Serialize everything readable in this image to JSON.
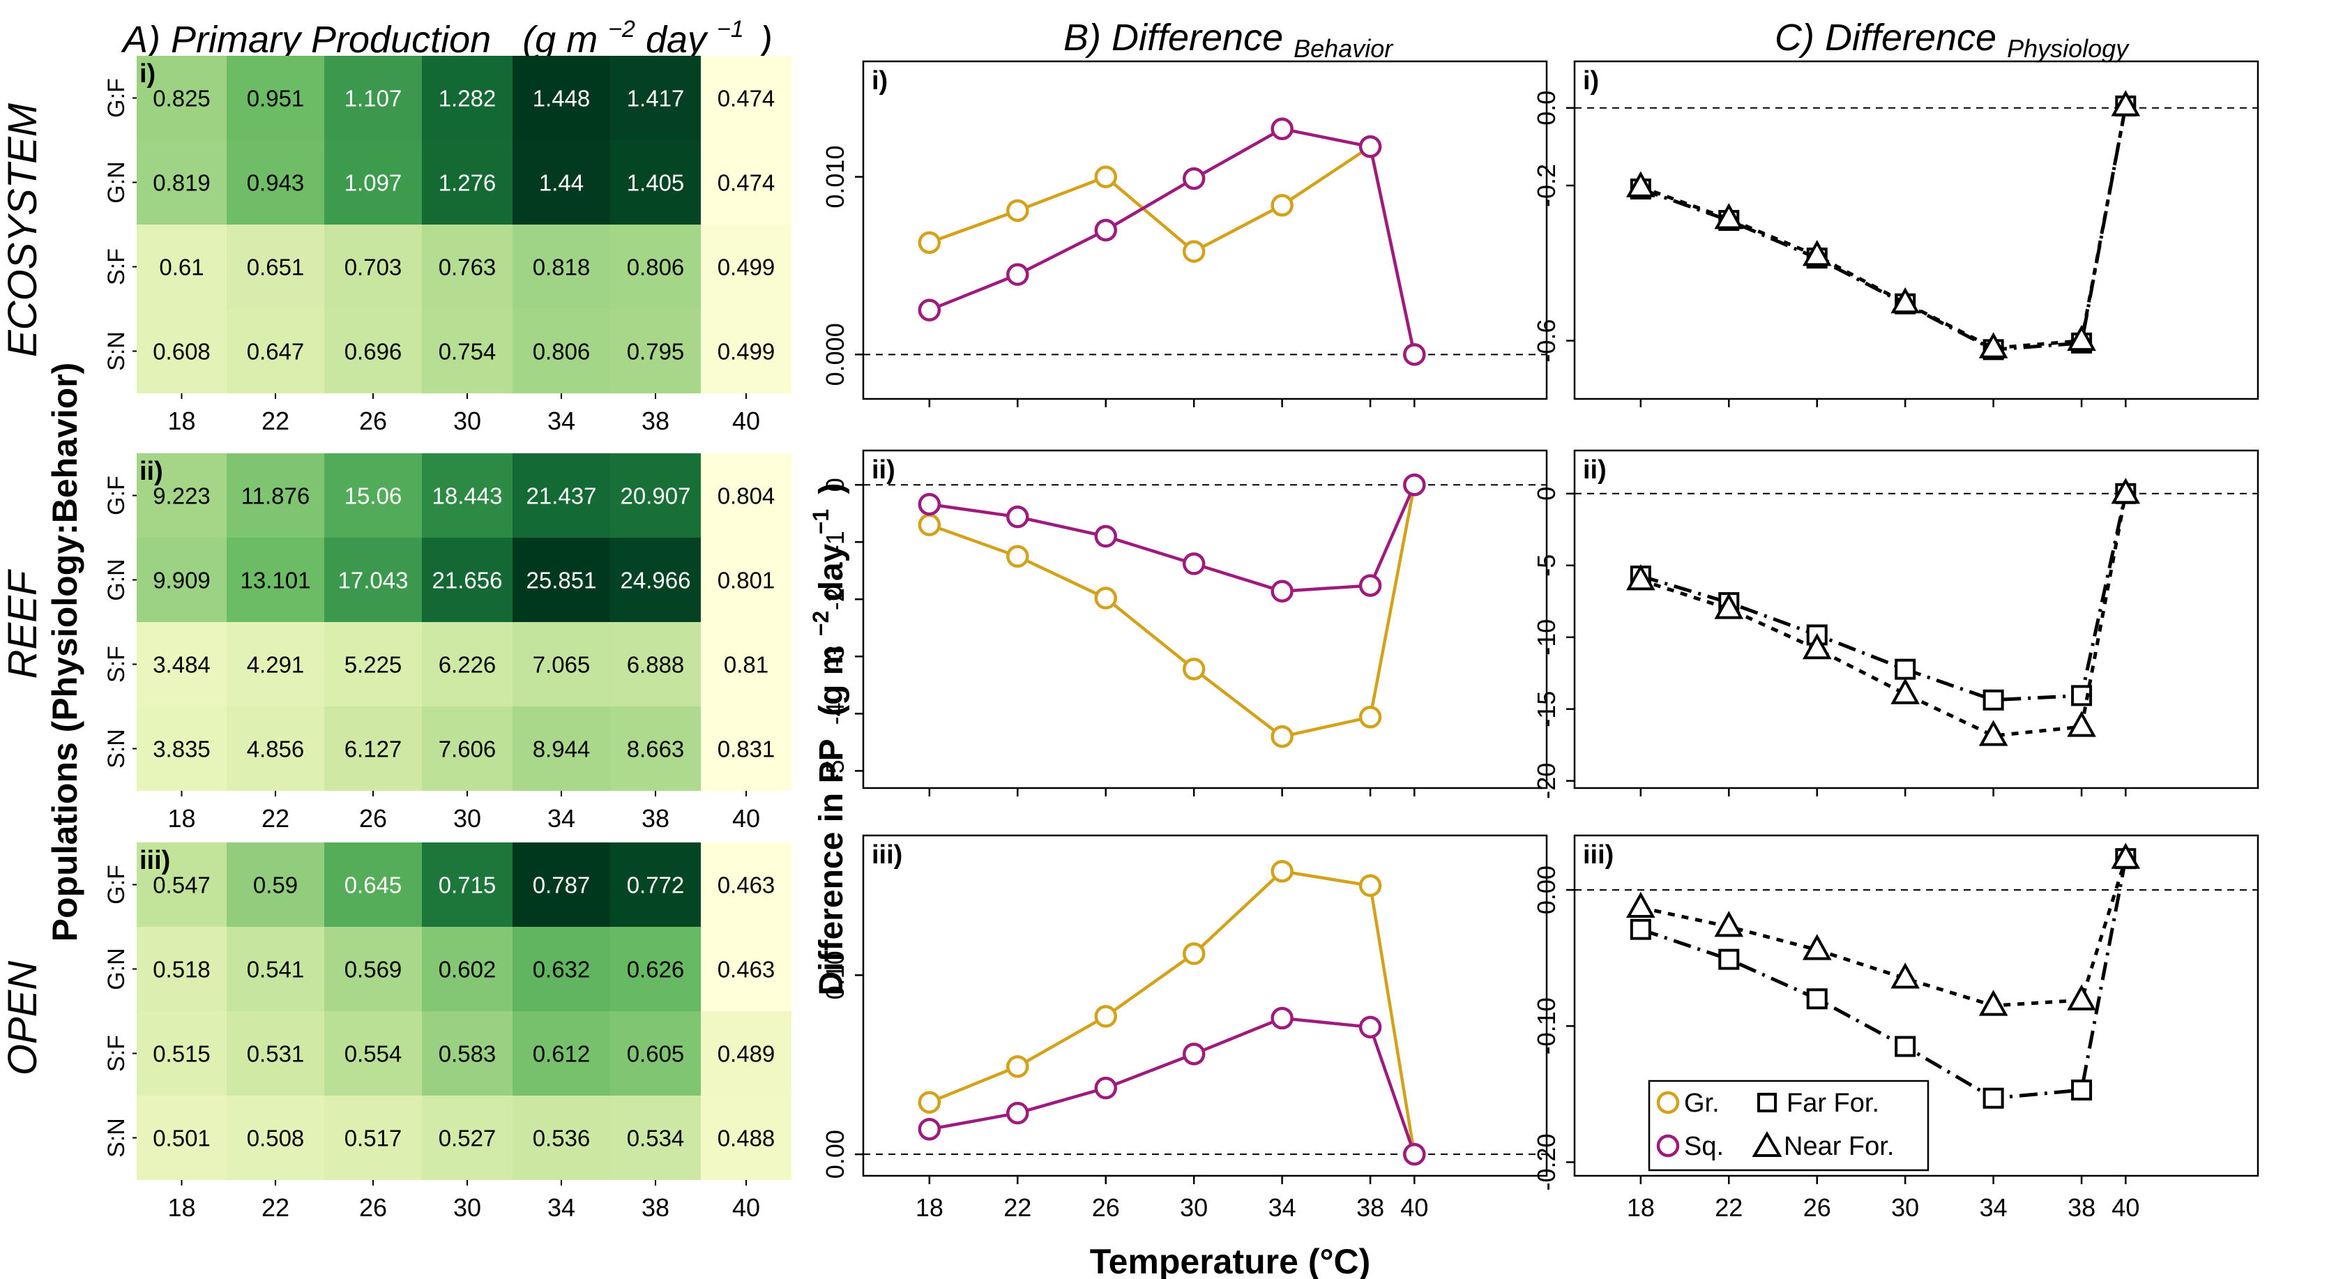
{
  "headers": {
    "a_prefix": "A) Primary Production",
    "a_units": "(g m",
    "a_units_exp": "−2",
    "a_units_day": " day",
    "a_units_exp2": "−1",
    "a_units_close": ")",
    "b_main": "B) Difference",
    "b_sub": "Behavior",
    "c_main": "C) Difference",
    "c_sub": "Physiology"
  },
  "row_labels": {
    "ecosystem": "ECOSYSTEM",
    "reef": "REEF",
    "open": "OPEN",
    "populations": "Populations (Physiology:Behavior)"
  },
  "shared_labels": {
    "ylabel_main": "Difference in PP",
    "ylabel_units": "(g m",
    "ylabel_exp": "−2",
    "ylabel_day": " day",
    "ylabel_exp2": "−1",
    "ylabel_close": ")",
    "xlabel": "Temperature (°C)"
  },
  "legend": {
    "gr": "Gr.",
    "sq": "Sq.",
    "far": "Far For.",
    "near": "Near For."
  },
  "colors": {
    "grazer": "#D4A21A",
    "squirrel": "#9E1A7E",
    "black": "#000000",
    "heat_low": "#FFFFDA",
    "heat_high": "#00381E"
  },
  "chart_data": [
    {
      "id": "A-i",
      "type": "heatmap",
      "panel_label": "i)",
      "rows": [
        "G:F",
        "G:N",
        "S:F",
        "S:N"
      ],
      "columns": [
        "18",
        "22",
        "26",
        "30",
        "34",
        "38",
        "40"
      ],
      "values": [
        [
          "0.825",
          "0.951",
          "1.107",
          "1.282",
          "1.448",
          "1.417",
          "0.474"
        ],
        [
          "0.819",
          "0.943",
          "1.097",
          "1.276",
          "1.44",
          "1.405",
          "0.474"
        ],
        [
          "0.61",
          "0.651",
          "0.703",
          "0.763",
          "0.818",
          "0.806",
          "0.499"
        ],
        [
          "0.608",
          "0.647",
          "0.696",
          "0.754",
          "0.806",
          "0.795",
          "0.499"
        ]
      ],
      "xlabel": "Temperature (°C)"
    },
    {
      "id": "A-ii",
      "type": "heatmap",
      "panel_label": "ii)",
      "rows": [
        "G:F",
        "G:N",
        "S:F",
        "S:N"
      ],
      "columns": [
        "18",
        "22",
        "26",
        "30",
        "34",
        "38",
        "40"
      ],
      "values": [
        [
          "9.223",
          "11.876",
          "15.06",
          "18.443",
          "21.437",
          "20.907",
          "0.804"
        ],
        [
          "9.909",
          "13.101",
          "17.043",
          "21.656",
          "25.851",
          "24.966",
          "0.801"
        ],
        [
          "3.484",
          "4.291",
          "5.225",
          "6.226",
          "7.065",
          "6.888",
          "0.81"
        ],
        [
          "3.835",
          "4.856",
          "6.127",
          "7.606",
          "8.944",
          "8.663",
          "0.831"
        ]
      ],
      "xlabel": "Temperature (°C)"
    },
    {
      "id": "A-iii",
      "type": "heatmap",
      "panel_label": "iii)",
      "rows": [
        "G:F",
        "G:N",
        "S:F",
        "S:N"
      ],
      "columns": [
        "18",
        "22",
        "26",
        "30",
        "34",
        "38",
        "40"
      ],
      "values": [
        [
          "0.547",
          "0.59",
          "0.645",
          "0.715",
          "0.787",
          "0.772",
          "0.463"
        ],
        [
          "0.518",
          "0.541",
          "0.569",
          "0.602",
          "0.632",
          "0.626",
          "0.463"
        ],
        [
          "0.515",
          "0.531",
          "0.554",
          "0.583",
          "0.612",
          "0.605",
          "0.489"
        ],
        [
          "0.501",
          "0.508",
          "0.517",
          "0.527",
          "0.536",
          "0.534",
          "0.488"
        ]
      ],
      "xlabel": "Temperature (°C)"
    },
    {
      "id": "B-i",
      "type": "line",
      "panel_label": "i)",
      "x": [
        18,
        22,
        26,
        30,
        34,
        38,
        40
      ],
      "xlim": [
        15,
        46
      ],
      "ylim": [
        -0.0025,
        0.0165
      ],
      "yticks": [
        0,
        0.01
      ],
      "ytick_labels": [
        "0.000",
        "0.010"
      ],
      "series": [
        {
          "name": "Gr.",
          "color": "#D4A21A",
          "values": [
            0.0063,
            0.0081,
            0.01,
            0.0058,
            0.0084,
            0.0117,
            0
          ]
        },
        {
          "name": "Sq.",
          "color": "#9E1A7E",
          "values": [
            0.0025,
            0.0045,
            0.007,
            0.0099,
            0.0127,
            0.0117,
            0
          ]
        }
      ]
    },
    {
      "id": "B-ii",
      "type": "line",
      "panel_label": "ii)",
      "x": [
        18,
        22,
        26,
        30,
        34,
        38,
        40
      ],
      "xlim": [
        15,
        46
      ],
      "ylim": [
        -5.3,
        0.6
      ],
      "yticks": [
        0,
        -1,
        -2,
        -3,
        -4,
        -5
      ],
      "ytick_labels": [
        "0",
        "-1",
        "-2",
        "-3",
        "-4",
        "-5"
      ],
      "series": [
        {
          "name": "Gr.",
          "color": "#D4A21A",
          "values": [
            -0.7,
            -1.25,
            -1.98,
            -3.22,
            -4.4,
            -4.06,
            0
          ]
        },
        {
          "name": "Sq.",
          "color": "#9E1A7E",
          "values": [
            -0.34,
            -0.56,
            -0.9,
            -1.38,
            -1.86,
            -1.76,
            0
          ]
        }
      ]
    },
    {
      "id": "B-iii",
      "type": "line",
      "panel_label": "iii)",
      "x": [
        18,
        22,
        26,
        30,
        34,
        38,
        40
      ],
      "xlim": [
        15,
        46
      ],
      "ylim": [
        -0.012,
        0.178
      ],
      "yticks": [
        0,
        0.1
      ],
      "ytick_labels": [
        "0.00",
        "0.10"
      ],
      "series": [
        {
          "name": "Gr.",
          "color": "#D4A21A",
          "values": [
            0.029,
            0.049,
            0.077,
            0.112,
            0.158,
            0.15,
            0
          ]
        },
        {
          "name": "Sq.",
          "color": "#9E1A7E",
          "values": [
            0.014,
            0.023,
            0.037,
            0.056,
            0.076,
            0.071,
            0
          ]
        }
      ]
    },
    {
      "id": "C-i",
      "type": "line",
      "panel_label": "i)",
      "x": [
        18,
        22,
        26,
        30,
        34,
        38,
        40
      ],
      "xlim": [
        15,
        46
      ],
      "ylim": [
        -0.75,
        0.12
      ],
      "yticks": [
        0,
        -0.2,
        -0.6
      ],
      "ytick_labels": [
        "0.0",
        "-0.2",
        "-0.6"
      ],
      "series": [
        {
          "name": "Far For.",
          "marker": "square",
          "dash": "long",
          "values": [
            -0.209,
            -0.29,
            -0.387,
            -0.505,
            -0.623,
            -0.606,
            0.005
          ]
        },
        {
          "name": "Near For.",
          "marker": "triangle",
          "dash": "short",
          "values": [
            -0.204,
            -0.286,
            -0.381,
            -0.503,
            -0.619,
            -0.6,
            0.005
          ]
        }
      ]
    },
    {
      "id": "C-ii",
      "type": "line",
      "panel_label": "ii)",
      "x": [
        18,
        22,
        26,
        30,
        34,
        38,
        40
      ],
      "xlim": [
        15,
        46
      ],
      "ylim": [
        -20.5,
        3.0
      ],
      "yticks": [
        0,
        -5,
        -10,
        -15,
        -20
      ],
      "ytick_labels": [
        "0",
        "-5",
        "-10",
        "-15",
        "-20"
      ],
      "series": [
        {
          "name": "Far For.",
          "marker": "square",
          "dash": "long",
          "values": [
            -5.74,
            -7.59,
            -9.84,
            -12.23,
            -14.37,
            -14.06,
            0
          ]
        },
        {
          "name": "Near For.",
          "marker": "triangle",
          "dash": "short",
          "values": [
            -6.02,
            -8.02,
            -10.82,
            -13.95,
            -16.86,
            -16.23,
            0
          ]
        }
      ]
    },
    {
      "id": "C-iii",
      "type": "line",
      "panel_label": "iii)",
      "x": [
        18,
        22,
        26,
        30,
        34,
        38,
        40
      ],
      "xlim": [
        15,
        46
      ],
      "ylim": [
        -0.21,
        0.04
      ],
      "yticks": [
        0,
        -0.1,
        -0.2
      ],
      "ytick_labels": [
        "0.00",
        "-0.10",
        "-0.20"
      ],
      "series": [
        {
          "name": "Far For.",
          "marker": "square",
          "dash": "long",
          "values": [
            -0.029,
            -0.051,
            -0.08,
            -0.115,
            -0.153,
            -0.147,
            0.023
          ]
        },
        {
          "name": "Near For.",
          "marker": "triangle",
          "dash": "short",
          "values": [
            -0.013,
            -0.027,
            -0.044,
            -0.065,
            -0.085,
            -0.081,
            0.023
          ]
        }
      ]
    }
  ]
}
